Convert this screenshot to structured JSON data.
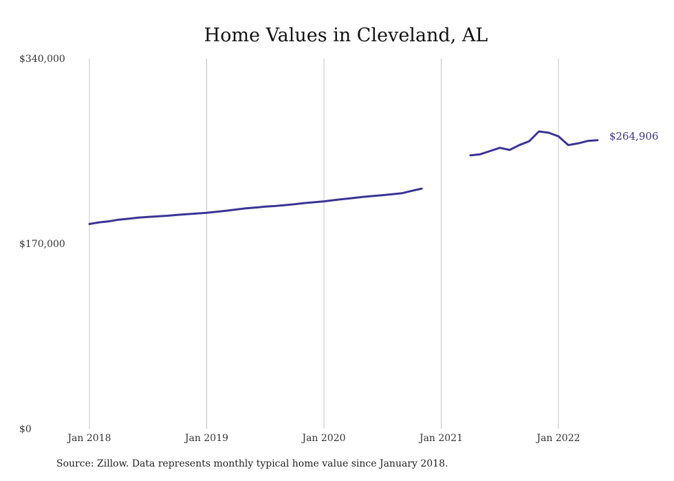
{
  "chart_data": {
    "type": "line",
    "title": "Home Values in Cleveland, AL",
    "xlabel": "",
    "ylabel": "",
    "ylim": [
      0,
      340000
    ],
    "y_ticks": [
      {
        "value": 0,
        "label": "$0"
      },
      {
        "value": 170000,
        "label": "$170,000"
      },
      {
        "value": 340000,
        "label": "$340,000"
      }
    ],
    "x_ticks": [
      {
        "date": "2018-01",
        "label": "Jan 2018"
      },
      {
        "date": "2019-01",
        "label": "Jan 2019"
      },
      {
        "date": "2020-01",
        "label": "Jan 2020"
      },
      {
        "date": "2021-01",
        "label": "Jan 2021"
      },
      {
        "date": "2022-01",
        "label": "Jan 2022"
      }
    ],
    "grid": "vertical",
    "line_color": "#3a3394",
    "end_label": "$264,906",
    "series": [
      {
        "segments": [
          [
            {
              "x": "2018-01",
              "y": 188000
            },
            {
              "x": "2018-02",
              "y": 189500
            },
            {
              "x": "2018-03",
              "y": 190500
            },
            {
              "x": "2018-04",
              "y": 192000
            },
            {
              "x": "2018-05",
              "y": 192800
            },
            {
              "x": "2018-06",
              "y": 193800
            },
            {
              "x": "2018-07",
              "y": 194500
            },
            {
              "x": "2018-08",
              "y": 195000
            },
            {
              "x": "2018-09",
              "y": 195600
            },
            {
              "x": "2018-10",
              "y": 196400
            },
            {
              "x": "2018-11",
              "y": 197000
            },
            {
              "x": "2018-12",
              "y": 197600
            },
            {
              "x": "2019-01",
              "y": 198300
            },
            {
              "x": "2019-02",
              "y": 199200
            },
            {
              "x": "2019-03",
              "y": 200200
            },
            {
              "x": "2019-04",
              "y": 201300
            },
            {
              "x": "2019-05",
              "y": 202400
            },
            {
              "x": "2019-06",
              "y": 203100
            },
            {
              "x": "2019-07",
              "y": 204000
            },
            {
              "x": "2019-08",
              "y": 204500
            },
            {
              "x": "2019-09",
              "y": 205300
            },
            {
              "x": "2019-10",
              "y": 206200
            },
            {
              "x": "2019-11",
              "y": 207200
            },
            {
              "x": "2019-12",
              "y": 208000
            },
            {
              "x": "2020-01",
              "y": 208800
            },
            {
              "x": "2020-02",
              "y": 209900
            },
            {
              "x": "2020-03",
              "y": 210900
            },
            {
              "x": "2020-04",
              "y": 211900
            },
            {
              "x": "2020-05",
              "y": 212900
            },
            {
              "x": "2020-06",
              "y": 213700
            },
            {
              "x": "2020-07",
              "y": 214500
            },
            {
              "x": "2020-08",
              "y": 215300
            },
            {
              "x": "2020-09",
              "y": 216300
            },
            {
              "x": "2020-10",
              "y": 218500
            },
            {
              "x": "2020-11",
              "y": 220500
            }
          ],
          [
            {
              "x": "2021-04",
              "y": 251000
            },
            {
              "x": "2021-05",
              "y": 252000
            },
            {
              "x": "2021-06",
              "y": 255000
            },
            {
              "x": "2021-07",
              "y": 258000
            },
            {
              "x": "2021-08",
              "y": 256000
            },
            {
              "x": "2021-09",
              "y": 260500
            },
            {
              "x": "2021-10",
              "y": 264000
            },
            {
              "x": "2021-11",
              "y": 273000
            },
            {
              "x": "2021-12",
              "y": 271800
            },
            {
              "x": "2022-01",
              "y": 268500
            },
            {
              "x": "2022-02",
              "y": 260500
            },
            {
              "x": "2022-03",
              "y": 262000
            },
            {
              "x": "2022-04",
              "y": 264300
            },
            {
              "x": "2022-05",
              "y": 264906
            }
          ]
        ]
      }
    ]
  },
  "footer": {
    "source": "Source: Zillow. Data represents monthly typical home value since January 2018."
  }
}
